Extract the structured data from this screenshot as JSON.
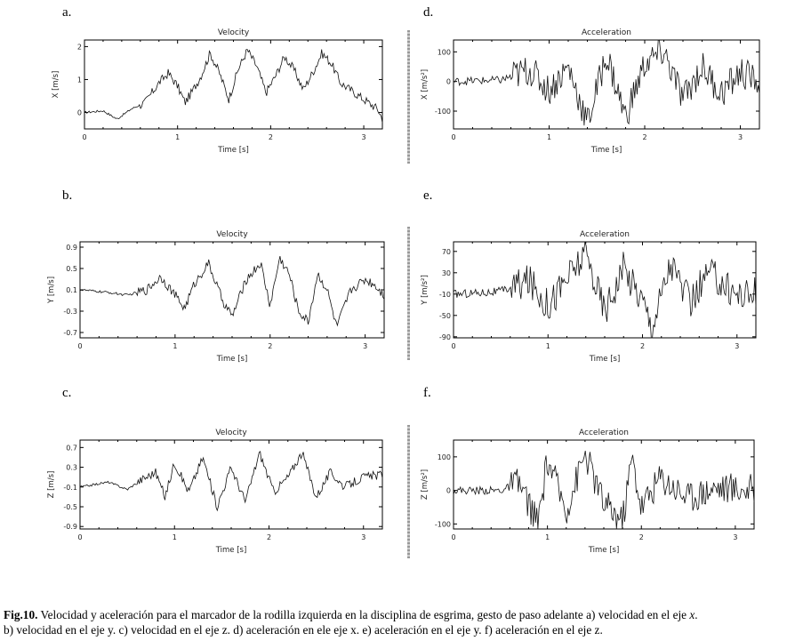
{
  "chart_data": [
    {
      "type": "line",
      "letter": "a.",
      "title": "Velocity",
      "xlabel": "Time [s]",
      "ylabel": "X [m/s]",
      "xlim": [
        0,
        3.2
      ],
      "ylim": [
        -0.5,
        2.2
      ],
      "xticks": [
        "0",
        "1",
        "2",
        "3"
      ],
      "yticks": [
        "0",
        "1",
        "2"
      ],
      "series": [
        {
          "x": [
            0,
            0.2,
            0.35,
            0.5,
            0.65,
            0.8,
            0.9,
            1.0,
            1.08,
            1.15,
            1.25,
            1.35,
            1.45,
            1.55,
            1.65,
            1.75,
            1.85,
            1.95,
            2.05,
            2.15,
            2.25,
            2.35,
            2.45,
            2.55,
            2.65,
            2.75,
            2.85,
            2.95,
            3.05,
            3.15,
            3.2
          ],
          "y": [
            0,
            0.05,
            -0.2,
            0.1,
            0.3,
            0.9,
            1.2,
            0.8,
            0.3,
            0.6,
            1.1,
            1.8,
            1.2,
            0.4,
            1.3,
            1.9,
            1.4,
            0.6,
            1.1,
            1.7,
            1.3,
            0.7,
            1.2,
            1.8,
            1.5,
            0.9,
            0.7,
            0.5,
            0.3,
            0.1,
            -0.2
          ]
        }
      ]
    },
    {
      "type": "line",
      "letter": "b.",
      "title": "Velocity",
      "xlabel": "Time [s]",
      "ylabel": "Y [m/s]",
      "xlim": [
        0,
        3.2
      ],
      "ylim": [
        -0.8,
        1.0
      ],
      "xticks": [
        "0",
        "1",
        "2",
        "3"
      ],
      "yticks": [
        "0.9",
        "0.5",
        "0.1",
        "-0.3",
        "-0.7"
      ],
      "series": [
        {
          "x": [
            0,
            0.3,
            0.5,
            0.7,
            0.85,
            1.0,
            1.1,
            1.2,
            1.35,
            1.5,
            1.6,
            1.75,
            1.9,
            2.0,
            2.1,
            2.2,
            2.3,
            2.4,
            2.5,
            2.6,
            2.7,
            2.85,
            3.0,
            3.1,
            3.2
          ],
          "y": [
            0.1,
            0.05,
            0.0,
            0.1,
            0.35,
            0.0,
            -0.25,
            0.2,
            0.6,
            -0.1,
            -0.4,
            0.3,
            0.6,
            -0.2,
            0.7,
            0.4,
            -0.3,
            -0.5,
            0.4,
            0.1,
            -0.6,
            0.1,
            0.3,
            0.2,
            0.0
          ]
        }
      ]
    },
    {
      "type": "line",
      "letter": "c.",
      "title": "Velocity",
      "xlabel": "Time [s]",
      "ylabel": "Z [m/s]",
      "xlim": [
        0,
        3.2
      ],
      "ylim": [
        -0.95,
        0.85
      ],
      "xticks": [
        "0",
        "1",
        "2",
        "3"
      ],
      "yticks": [
        "0.7",
        "0.3",
        "-0.1",
        "-0.5",
        "-0.9"
      ],
      "series": [
        {
          "x": [
            0,
            0.3,
            0.5,
            0.65,
            0.8,
            0.9,
            1.0,
            1.15,
            1.3,
            1.45,
            1.6,
            1.75,
            1.9,
            2.05,
            2.2,
            2.35,
            2.5,
            2.65,
            2.8,
            3.0,
            3.2
          ],
          "y": [
            -0.1,
            0.0,
            -0.15,
            0.05,
            0.2,
            -0.3,
            0.4,
            -0.2,
            0.5,
            -0.5,
            0.3,
            -0.4,
            0.6,
            -0.2,
            0.1,
            0.6,
            -0.3,
            0.2,
            -0.1,
            0.1,
            0.15
          ]
        }
      ]
    },
    {
      "type": "line",
      "letter": "d.",
      "title": "Acceleration",
      "xlabel": "Time [s]",
      "ylabel": "X [m/s²]",
      "xlim": [
        0,
        3.2
      ],
      "ylim": [
        -160,
        140
      ],
      "xticks": [
        "0",
        "1",
        "2",
        "3"
      ],
      "yticks": [
        "100",
        "0",
        "-100"
      ],
      "series": [
        {
          "x": [
            0,
            0.5,
            0.8,
            1.0,
            1.2,
            1.4,
            1.6,
            1.8,
            2.0,
            2.2,
            2.4,
            2.6,
            2.8,
            3.0,
            3.2
          ],
          "y": [
            0,
            5,
            40,
            -30,
            50,
            -140,
            90,
            -120,
            60,
            100,
            -60,
            50,
            -40,
            30,
            0
          ]
        }
      ]
    },
    {
      "type": "line",
      "letter": "e.",
      "title": "Acceleration",
      "xlabel": "Time [s]",
      "ylabel": "Y [m/s²]",
      "xlim": [
        0,
        3.2
      ],
      "ylim": [
        -92,
        88
      ],
      "xticks": [
        "0",
        "1",
        "2",
        "3"
      ],
      "yticks": [
        "70",
        "30",
        "-10",
        "-50",
        "-90"
      ],
      "series": [
        {
          "x": [
            0,
            0.5,
            0.8,
            1.0,
            1.2,
            1.4,
            1.6,
            1.8,
            2.0,
            2.1,
            2.3,
            2.5,
            2.7,
            3.0,
            3.2
          ],
          "y": [
            -10,
            -5,
            15,
            -30,
            20,
            65,
            -40,
            40,
            -20,
            -70,
            50,
            -30,
            30,
            -10,
            -10
          ]
        }
      ]
    },
    {
      "type": "line",
      "letter": "f.",
      "title": "Acceleration",
      "xlabel": "Time [s]",
      "ylabel": "Z [m/s²]",
      "xlim": [
        0,
        3.2
      ],
      "ylim": [
        -115,
        150
      ],
      "xticks": [
        "0",
        "1",
        "2",
        "3"
      ],
      "yticks": [
        "100",
        "0",
        "-100"
      ],
      "series": [
        {
          "x": [
            0,
            0.5,
            0.7,
            0.9,
            1.0,
            1.2,
            1.4,
            1.6,
            1.8,
            1.9,
            2.0,
            2.2,
            2.5,
            2.8,
            3.2
          ],
          "y": [
            0,
            0,
            20,
            -100,
            90,
            -60,
            110,
            -40,
            -90,
            100,
            -50,
            40,
            -20,
            10,
            0
          ]
        }
      ]
    }
  ],
  "caption": {
    "label": "Fig.10.",
    "line1": " Velocidad y aceleración para el marcador de la rodilla izquierda en la disciplina de esgrima, gesto de paso adelante a) velocidad en el eje ",
    "line1_axis": "x",
    "line1_end": ".",
    "line2": "b) velocidad en el eje y. c) velocidad en el eje z. d) aceleración en ele eje x. e) aceleración en el eje y. f) aceleración en el eje z."
  }
}
